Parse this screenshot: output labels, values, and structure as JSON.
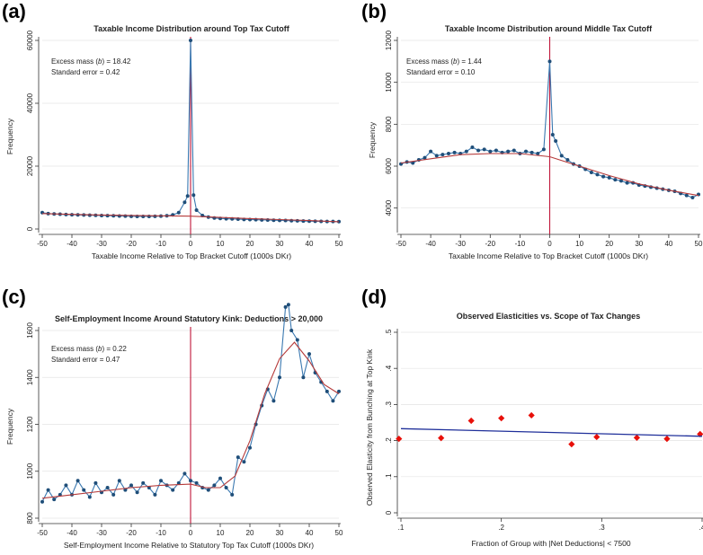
{
  "chart_data": [
    {
      "panel_label": "(a)",
      "type": "line",
      "title": "Taxable Income Distribution around Top Tax Cutoff",
      "xlabel": "Taxable Income Relative to Top Bracket Cutoff (1000s DKr)",
      "ylabel": "Frequency",
      "xlim": [
        -50,
        50
      ],
      "ylim": [
        0,
        60000
      ],
      "xticks": [
        -50,
        -40,
        -30,
        -20,
        -10,
        0,
        10,
        20,
        30,
        40,
        50
      ],
      "yticks": [
        0,
        20000,
        40000,
        60000
      ],
      "cutoff_x": 0,
      "annotation": [
        "Excess mass (b) = 18.42",
        "Standard error = 0.42"
      ],
      "series": [
        {
          "role": "observed",
          "x": [
            -50,
            -48,
            -46,
            -44,
            -42,
            -40,
            -38,
            -36,
            -34,
            -32,
            -30,
            -28,
            -26,
            -24,
            -22,
            -20,
            -18,
            -16,
            -14,
            -12,
            -10,
            -8,
            -6,
            -4,
            -2,
            -1,
            0,
            1,
            2,
            4,
            6,
            8,
            10,
            12,
            14,
            16,
            18,
            20,
            22,
            24,
            26,
            28,
            30,
            32,
            34,
            36,
            38,
            40,
            42,
            44,
            46,
            48,
            50
          ],
          "y": [
            5200,
            4900,
            4800,
            4700,
            4600,
            4550,
            4500,
            4450,
            4400,
            4350,
            4300,
            4250,
            4200,
            4150,
            4100,
            4050,
            4000,
            4000,
            4000,
            4050,
            4100,
            4200,
            4500,
            5200,
            8500,
            10500,
            60000,
            10800,
            6000,
            4300,
            3800,
            3500,
            3350,
            3250,
            3200,
            3150,
            3050,
            3000,
            2950,
            2900,
            2850,
            2800,
            2750,
            2700,
            2650,
            2600,
            2550,
            2500,
            2450,
            2420,
            2400,
            2380,
            2350
          ]
        },
        {
          "role": "counterfactual",
          "x": [
            -50,
            -40,
            -30,
            -20,
            -10,
            0,
            10,
            20,
            30,
            40,
            50
          ],
          "y": [
            4900,
            4650,
            4450,
            4300,
            4200,
            4100,
            3700,
            3300,
            3000,
            2700,
            2300
          ]
        }
      ]
    },
    {
      "panel_label": "(b)",
      "type": "line",
      "title": "Taxable Income Distribution around Middle Tax Cutoff",
      "xlabel": "Taxable Income Relative to Top Bracket Cutoff (1000s DKr)",
      "ylabel": "Frequency",
      "xlim": [
        -50,
        50
      ],
      "ylim": [
        3000,
        12000
      ],
      "xticks": [
        -50,
        -40,
        -30,
        -20,
        -10,
        0,
        10,
        20,
        30,
        40,
        50
      ],
      "yticks": [
        4000,
        6000,
        8000,
        10000,
        12000
      ],
      "cutoff_x": 0,
      "annotation": [
        "Excess mass (b) = 1.44",
        "Standard error = 0.10"
      ],
      "series": [
        {
          "role": "observed",
          "x": [
            -50,
            -48,
            -46,
            -44,
            -42,
            -40,
            -38,
            -36,
            -34,
            -32,
            -30,
            -28,
            -26,
            -24,
            -22,
            -20,
            -18,
            -16,
            -14,
            -12,
            -10,
            -8,
            -6,
            -4,
            -2,
            0,
            1,
            2,
            4,
            6,
            8,
            10,
            12,
            14,
            16,
            18,
            20,
            22,
            24,
            26,
            28,
            30,
            32,
            34,
            36,
            38,
            40,
            42,
            44,
            46,
            48,
            50
          ],
          "y": [
            6100,
            6200,
            6150,
            6300,
            6400,
            6700,
            6500,
            6550,
            6600,
            6650,
            6600,
            6700,
            6900,
            6750,
            6800,
            6700,
            6750,
            6650,
            6700,
            6750,
            6600,
            6700,
            6650,
            6600,
            6800,
            11000,
            7500,
            7200,
            6500,
            6300,
            6100,
            6000,
            5850,
            5700,
            5600,
            5500,
            5450,
            5350,
            5300,
            5200,
            5200,
            5100,
            5050,
            5000,
            4950,
            4900,
            4850,
            4800,
            4700,
            4600,
            4500,
            4650
          ]
        },
        {
          "role": "counterfactual",
          "x": [
            -50,
            -40,
            -30,
            -20,
            -10,
            0,
            10,
            20,
            30,
            40,
            50
          ],
          "y": [
            6150,
            6350,
            6550,
            6600,
            6600,
            6450,
            6000,
            5550,
            5150,
            4850,
            4600
          ]
        }
      ]
    },
    {
      "panel_label": "(c)",
      "type": "line",
      "title": "Self-Employment Income Around Statutory Kink: Deductions > 20,000",
      "xlabel": "Self-Employment Income Relative to Statutory Top Tax Cutoff (1000s DKr)",
      "ylabel": "Frequency",
      "xlim": [
        -50,
        50
      ],
      "ylim": [
        800,
        1600
      ],
      "xticks": [
        -50,
        -40,
        -30,
        -20,
        -10,
        0,
        10,
        20,
        30,
        40,
        50
      ],
      "yticks": [
        800,
        1000,
        1200,
        1400,
        1600
      ],
      "cutoff_x": 0,
      "annotation": [
        "Excess mass (b) = 0.22",
        "Standard error = 0.47"
      ],
      "series": [
        {
          "role": "observed",
          "x": [
            -50,
            -48,
            -46,
            -44,
            -42,
            -40,
            -38,
            -36,
            -34,
            -32,
            -30,
            -28,
            -26,
            -24,
            -22,
            -20,
            -18,
            -16,
            -14,
            -12,
            -10,
            -8,
            -6,
            -4,
            -2,
            0,
            2,
            4,
            6,
            8,
            10,
            12,
            14,
            16,
            18,
            20,
            22,
            24,
            26,
            28,
            30,
            32,
            33,
            34,
            36,
            38,
            40,
            42,
            44,
            46,
            48,
            50
          ],
          "y": [
            870,
            920,
            880,
            900,
            940,
            900,
            960,
            920,
            890,
            950,
            910,
            930,
            900,
            960,
            920,
            940,
            910,
            950,
            930,
            900,
            960,
            940,
            920,
            950,
            990,
            960,
            950,
            930,
            920,
            940,
            970,
            930,
            900,
            1060,
            1040,
            1100,
            1200,
            1280,
            1350,
            1300,
            1400,
            1700,
            1710,
            1600,
            1560,
            1400,
            1500,
            1420,
            1380,
            1340,
            1300,
            1340
          ]
        },
        {
          "role": "counterfactual",
          "x": [
            -50,
            -40,
            -30,
            -20,
            -10,
            0,
            5,
            10,
            15,
            20,
            25,
            30,
            35,
            40,
            45,
            50
          ],
          "y": [
            885,
            900,
            915,
            930,
            940,
            945,
            930,
            930,
            980,
            1130,
            1330,
            1480,
            1550,
            1470,
            1370,
            1330
          ]
        }
      ]
    },
    {
      "panel_label": "(d)",
      "type": "scatter",
      "title": "Observed Elasticities vs. Scope of Tax Changes",
      "xlabel": "Fraction of Group with |Net Deductions| < 7500",
      "ylabel": "Observed Elasticity  from Bunching at Top Kink",
      "xlim": [
        0.1,
        0.4
      ],
      "ylim": [
        0,
        0.5
      ],
      "xticks": [
        0.1,
        0.2,
        0.3,
        0.4
      ],
      "xtick_labels": [
        ".1",
        ".2",
        ".3",
        ".4"
      ],
      "yticks": [
        0,
        0.1,
        0.2,
        0.3,
        0.4,
        0.5
      ],
      "ytick_labels": [
        "0",
        ".1",
        ".2",
        ".3",
        ".4",
        ".5"
      ],
      "series": [
        {
          "role": "points",
          "color": "#e8100a",
          "x": [
            0.098,
            0.14,
            0.17,
            0.2,
            0.23,
            0.27,
            0.295,
            0.335,
            0.365,
            0.398
          ],
          "y": [
            0.205,
            0.207,
            0.255,
            0.262,
            0.27,
            0.19,
            0.21,
            0.208,
            0.205,
            0.218
          ]
        },
        {
          "role": "fit",
          "color": "#1f2f9a",
          "x": [
            0.1,
            0.4
          ],
          "y": [
            0.233,
            0.212
          ]
        }
      ]
    }
  ],
  "colors": {
    "observed_line": "#3a78b0",
    "observed_marker": "#1f4e79",
    "counterfactual_line": "#b53a3a",
    "cutoff_line": "#c0163a",
    "scatter_points": "#e8100a",
    "fit_line": "#1f2f9a"
  }
}
